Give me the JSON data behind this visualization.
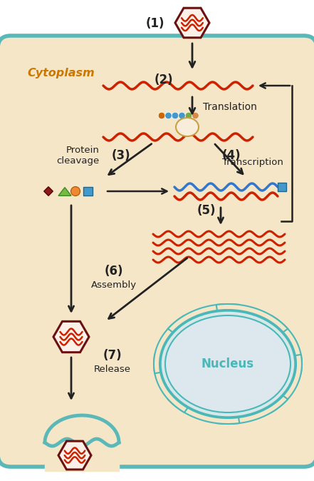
{
  "cell_fill": "#f5e6c8",
  "cell_border_color": "#5ab8b8",
  "cytoplasm_text": "Cytoplasm",
  "cytoplasm_color": "#cc7700",
  "nucleus_text": "Nucleus",
  "nucleus_color": "#4ab8b8",
  "arrow_color": "#222222",
  "rna_pos_color": "#cc2200",
  "rna_neg_color": "#3377cc",
  "step_labels": [
    "(1)",
    "(2)",
    "(3)",
    "(4)",
    "(5)",
    "(6)",
    "(7)"
  ],
  "protein_cleavage": "Protein\ncleavage",
  "transcription": "Transcription",
  "translation": "Translation",
  "assembly": "Assembly",
  "release": "Release"
}
